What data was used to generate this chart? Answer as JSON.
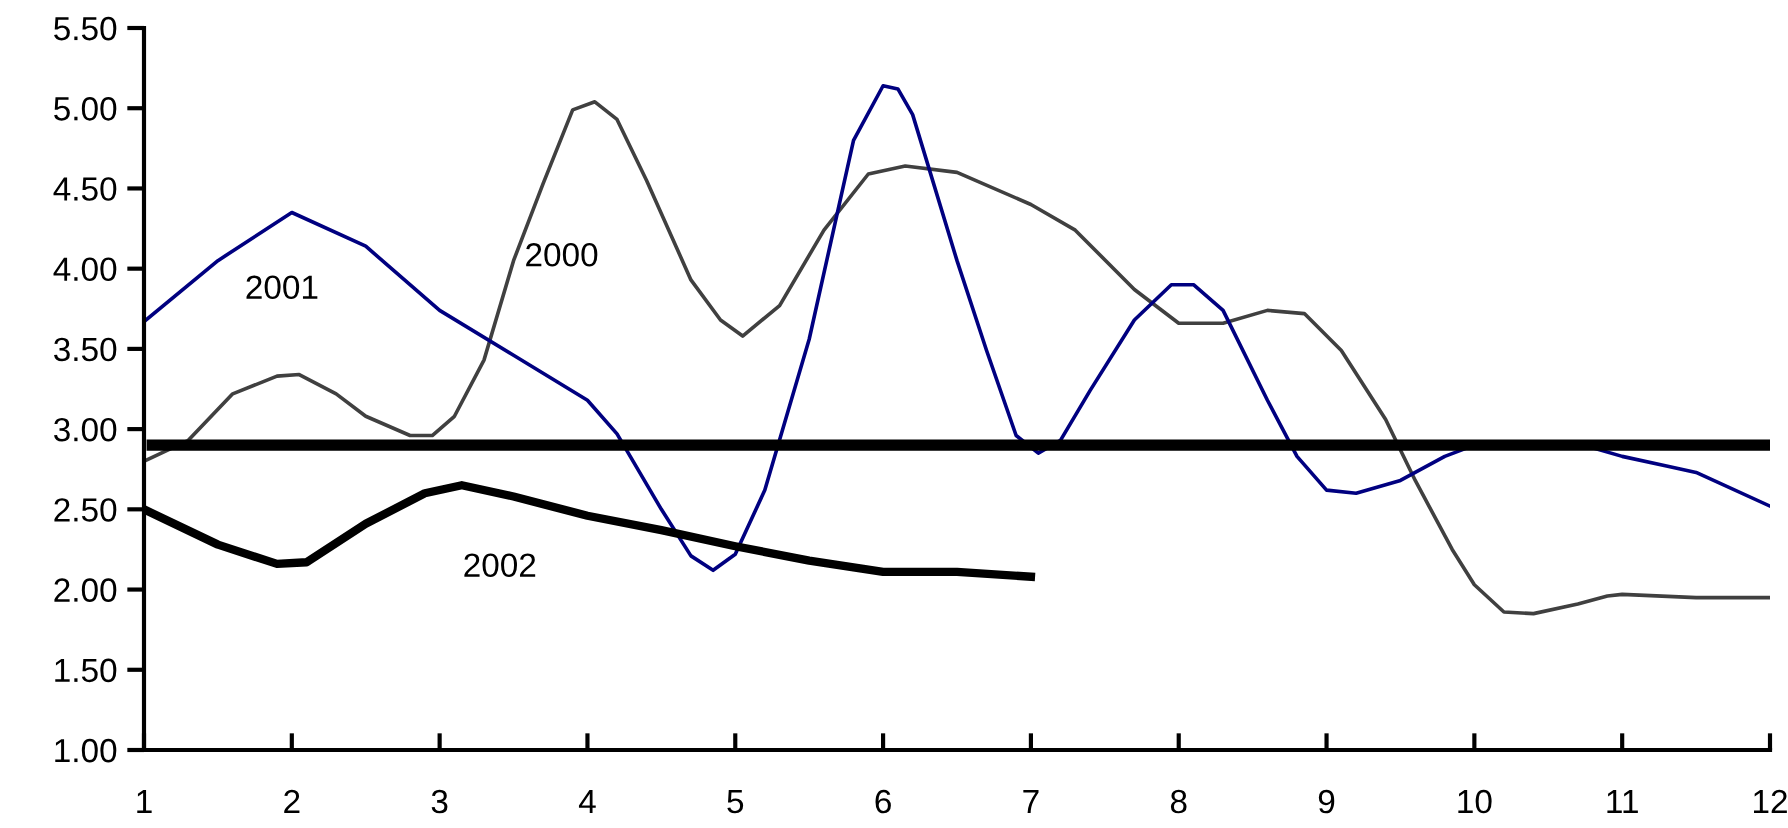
{
  "chart_data": {
    "type": "line",
    "xlim": [
      1,
      12
    ],
    "xticks": [
      1,
      2,
      3,
      4,
      5,
      6,
      7,
      8,
      9,
      10,
      11,
      12
    ],
    "ylim": [
      1.0,
      5.5
    ],
    "yticks": [
      {
        "value": 1.0,
        "label": "1.00"
      },
      {
        "value": 1.5,
        "label": "1.50"
      },
      {
        "value": 2.0,
        "label": "2.00"
      },
      {
        "value": 2.5,
        "label": "2.50"
      },
      {
        "value": 3.0,
        "label": "3.00"
      },
      {
        "value": 3.5,
        "label": "3.50"
      },
      {
        "value": 4.0,
        "label": "4.00"
      },
      {
        "value": 4.5,
        "label": "4.50"
      },
      {
        "value": 5.0,
        "label": "5.00"
      },
      {
        "value": 5.5,
        "label": "5.50"
      }
    ],
    "grid": false,
    "legend": false,
    "marker": "none",
    "line_style": "solid",
    "ref_lines": [
      {
        "axis": "y",
        "value": 2.9,
        "color": "#000000"
      }
    ],
    "series": [
      {
        "name": "2000",
        "color": "#404040",
        "x": [
          1,
          1.3,
          1.6,
          1.9,
          2.05,
          2.3,
          2.5,
          2.8,
          2.95,
          3.1,
          3.3,
          3.5,
          3.7,
          3.9,
          4.05,
          4.2,
          4.4,
          4.7,
          4.9,
          5.05,
          5.3,
          5.6,
          5.9,
          6.15,
          6.5,
          7,
          7.3,
          7.7,
          8,
          8.3,
          8.6,
          8.85,
          9.1,
          9.4,
          9.6,
          9.85,
          10,
          10.2,
          10.4,
          10.7,
          10.9,
          11,
          11.5,
          12
        ],
        "values": [
          2.8,
          2.93,
          3.22,
          3.33,
          3.34,
          3.22,
          3.08,
          2.96,
          2.96,
          3.08,
          3.43,
          4.05,
          4.53,
          4.99,
          5.04,
          4.93,
          4.55,
          3.93,
          3.68,
          3.58,
          3.77,
          4.24,
          4.59,
          4.64,
          4.6,
          4.4,
          4.24,
          3.87,
          3.66,
          3.66,
          3.74,
          3.72,
          3.49,
          3.06,
          2.68,
          2.25,
          2.03,
          1.86,
          1.85,
          1.91,
          1.96,
          1.97,
          1.95,
          1.95
        ]
      },
      {
        "name": "2001",
        "color": "#000080",
        "x": [
          1,
          1.5,
          2,
          2.5,
          3,
          3.5,
          4,
          4.2,
          4.5,
          4.7,
          4.85,
          5,
          5.2,
          5.5,
          5.8,
          6,
          6.1,
          6.2,
          6.5,
          6.7,
          6.9,
          7.05,
          7.2,
          7.4,
          7.7,
          7.95,
          8.1,
          8.3,
          8.6,
          8.8,
          9,
          9.2,
          9.5,
          9.8,
          10,
          10.7,
          11,
          11.3,
          11.5,
          12
        ],
        "values": [
          3.67,
          4.05,
          4.35,
          4.14,
          3.74,
          3.46,
          3.18,
          2.97,
          2.5,
          2.21,
          2.12,
          2.22,
          2.62,
          3.56,
          4.8,
          5.14,
          5.12,
          4.96,
          4.05,
          3.49,
          2.96,
          2.85,
          2.93,
          3.24,
          3.68,
          3.9,
          3.9,
          3.74,
          3.18,
          2.83,
          2.62,
          2.6,
          2.68,
          2.83,
          2.9,
          2.91,
          2.83,
          2.77,
          2.73,
          2.52
        ]
      },
      {
        "name": "2002",
        "color": "#000000",
        "x": [
          1,
          1.5,
          1.9,
          2.1,
          2.5,
          2.9,
          3.15,
          3.5,
          4,
          4.5,
          5,
          5.5,
          6,
          6.5,
          7
        ],
        "values": [
          2.5,
          2.28,
          2.16,
          2.17,
          2.41,
          2.6,
          2.65,
          2.58,
          2.46,
          2.37,
          2.27,
          2.18,
          2.11,
          2.11,
          2.08
        ]
      }
    ]
  }
}
